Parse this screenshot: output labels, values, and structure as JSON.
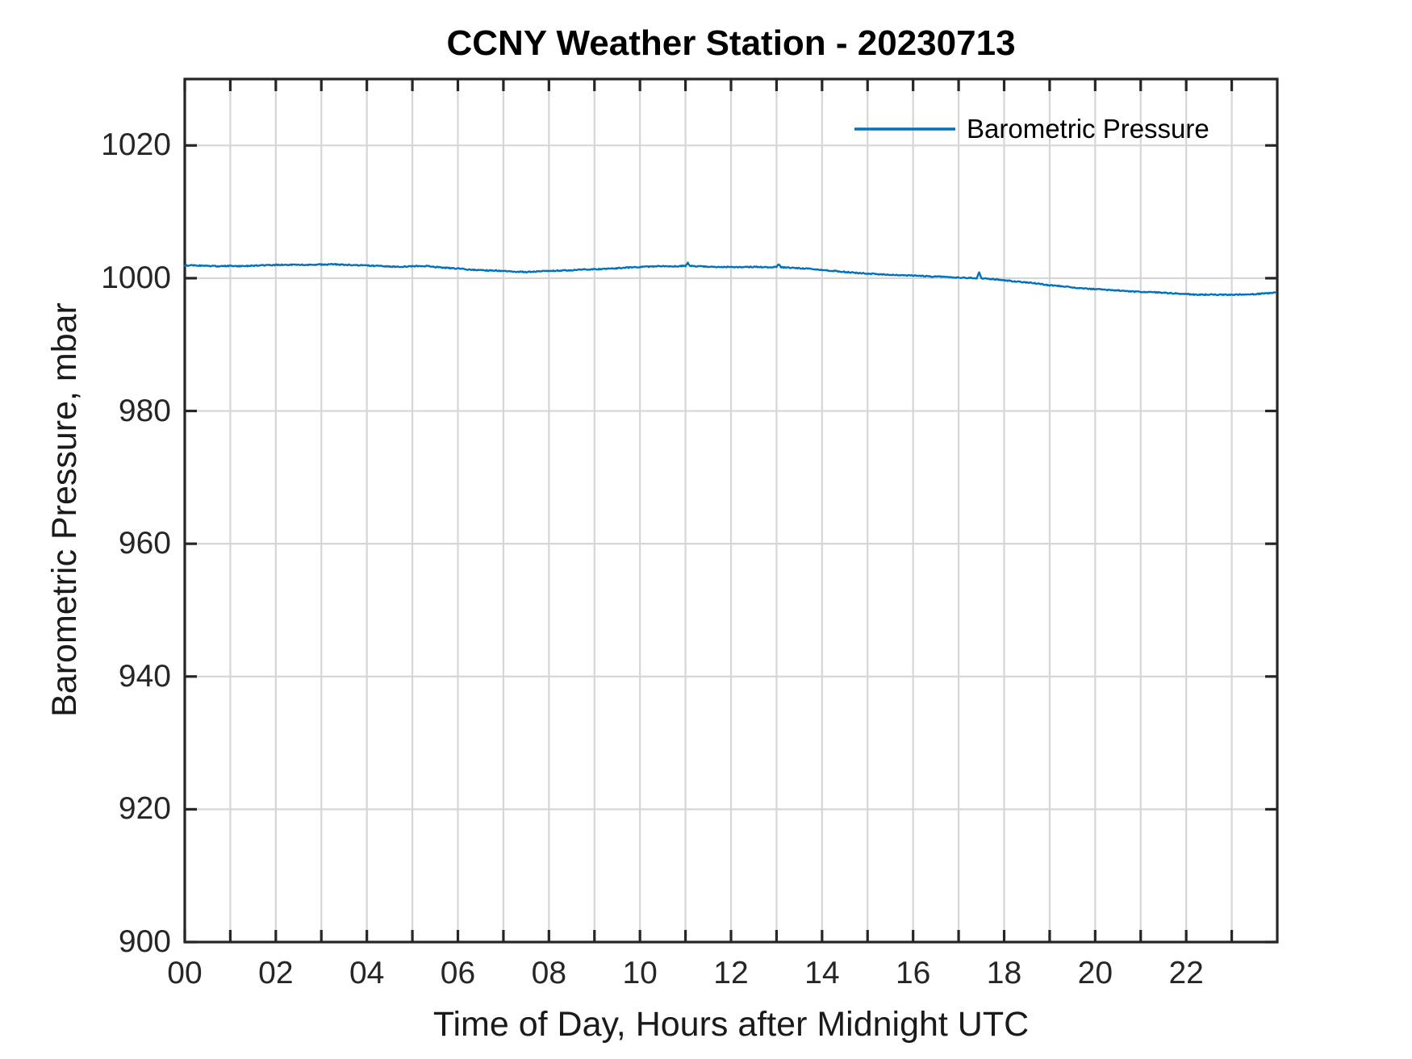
{
  "figure": {
    "title": "CCNY Weather Station - 20230713",
    "background": "#ffffff"
  },
  "legend": {
    "entries": [
      {
        "label": "Barometric Pressure",
        "color": "#0072BD"
      }
    ],
    "position": "top-right",
    "box": "none"
  },
  "colors": {
    "line": "#0072BD",
    "grid": "#d6d6d6",
    "axis": "#262626",
    "text": "#1a1a1a",
    "background": "#ffffff"
  },
  "chart_data": {
    "type": "line",
    "title": "CCNY Weather Station - 20230713",
    "xlabel": "Time of Day, Hours after Midnight UTC",
    "ylabel": "Barometric Pressure, mbar",
    "xlim": [
      0,
      24
    ],
    "ylim": [
      900,
      1030
    ],
    "grid": "on",
    "grid_spacing_x_hours": 1,
    "grid_spacing_y_mbar": 20,
    "xticks": {
      "labeled_values": [
        0,
        2,
        4,
        6,
        8,
        10,
        12,
        14,
        16,
        18,
        20,
        22
      ],
      "labels": [
        "00",
        "02",
        "04",
        "06",
        "08",
        "10",
        "12",
        "14",
        "16",
        "18",
        "20",
        "22"
      ],
      "minor_tick_every_hours": 1
    },
    "yticks": {
      "values": [
        900,
        920,
        940,
        960,
        980,
        1000,
        1020
      ],
      "labels": [
        "900",
        "920",
        "940",
        "960",
        "980",
        "1000",
        "1020"
      ]
    },
    "legend_position": "top-right",
    "series": [
      {
        "name": "Barometric Pressure",
        "color": "#0072BD",
        "units": "mbar",
        "x": [
          0,
          0.25,
          0.5,
          0.75,
          1,
          1.25,
          1.5,
          1.75,
          2,
          2.25,
          2.5,
          2.75,
          3,
          3.25,
          3.5,
          3.75,
          4,
          4.25,
          4.5,
          4.75,
          5,
          5.25,
          5.5,
          5.75,
          6,
          6.25,
          6.5,
          6.75,
          7,
          7.25,
          7.5,
          7.75,
          8,
          8.25,
          8.5,
          8.75,
          9,
          9.25,
          9.5,
          9.75,
          10,
          10.25,
          10.5,
          10.75,
          11,
          11.05,
          11.1,
          11.25,
          11.5,
          11.75,
          12,
          12.25,
          12.5,
          12.75,
          13,
          13.05,
          13.1,
          13.25,
          13.5,
          13.75,
          14,
          14.25,
          14.5,
          14.75,
          15,
          15.25,
          15.5,
          15.75,
          16,
          16.25,
          16.5,
          16.75,
          17,
          17.25,
          17.4,
          17.45,
          17.5,
          17.75,
          18,
          18.25,
          18.5,
          18.75,
          19,
          19.25,
          19.5,
          19.75,
          20,
          20.25,
          20.5,
          20.75,
          21,
          21.25,
          21.5,
          21.75,
          22,
          22.25,
          22.5,
          22.75,
          23,
          23.25,
          23.5,
          23.75,
          23.95
        ],
        "y": [
          1001.9,
          1001.95,
          1001.85,
          1001.8,
          1001.85,
          1001.8,
          1001.9,
          1001.95,
          1002,
          1002,
          1002.05,
          1002,
          1002.05,
          1002.1,
          1002,
          1001.95,
          1001.9,
          1001.85,
          1001.75,
          1001.7,
          1001.8,
          1001.85,
          1001.7,
          1001.55,
          1001.45,
          1001.3,
          1001.2,
          1001.15,
          1001.1,
          1001,
          1000.95,
          1001,
          1001.1,
          1001.15,
          1001.2,
          1001.3,
          1001.35,
          1001.4,
          1001.5,
          1001.6,
          1001.7,
          1001.75,
          1001.8,
          1001.8,
          1001.85,
          1002.35,
          1001.85,
          1001.8,
          1001.75,
          1001.7,
          1001.7,
          1001.65,
          1001.7,
          1001.65,
          1001.7,
          1002.15,
          1001.65,
          1001.6,
          1001.5,
          1001.4,
          1001.25,
          1001.1,
          1000.95,
          1000.8,
          1000.7,
          1000.6,
          1000.5,
          1000.45,
          1000.4,
          1000.3,
          1000.25,
          1000.2,
          1000.1,
          1000.05,
          1000,
          1000.85,
          1000,
          999.85,
          999.7,
          999.5,
          999.35,
          999.2,
          998.9,
          998.8,
          998.6,
          998.45,
          998.35,
          998.25,
          998.15,
          998,
          997.95,
          997.9,
          997.8,
          997.7,
          997.6,
          997.5,
          997.55,
          997.5,
          997.5,
          997.55,
          997.6,
          997.7,
          997.85
        ]
      }
    ]
  }
}
